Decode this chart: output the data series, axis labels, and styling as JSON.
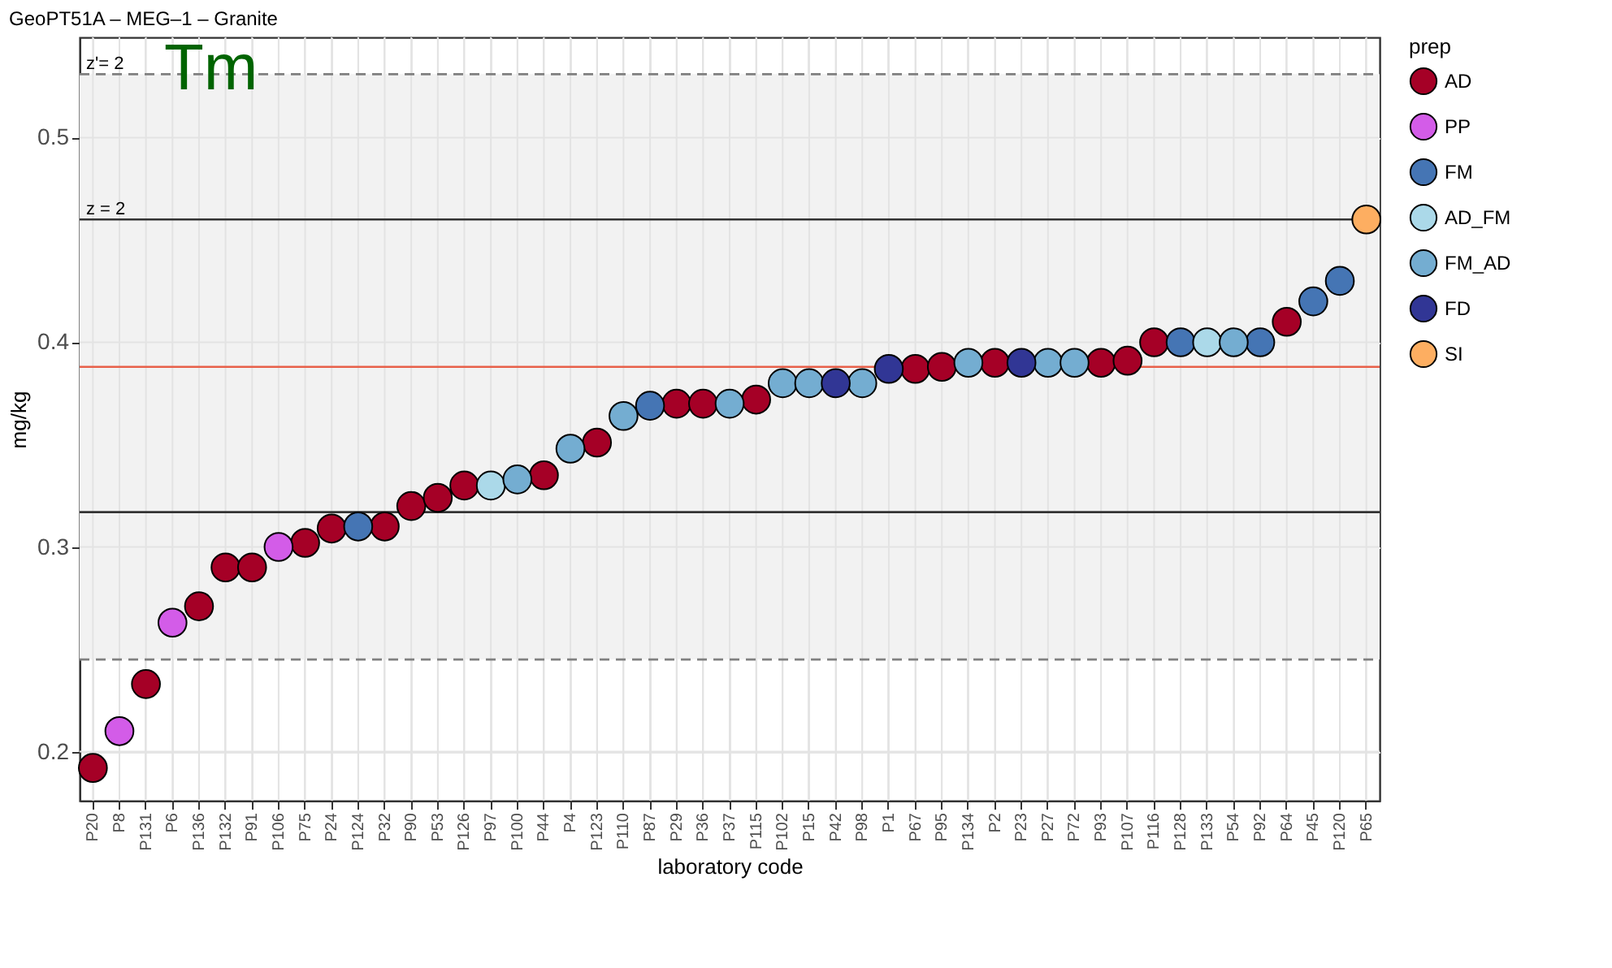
{
  "chart_data": {
    "type": "scatter",
    "title": "GeoPT51A – MEG–1 – Granite",
    "xlabel": "laboratory code",
    "ylabel": "mg/kg",
    "legend_title": "prep",
    "annotations": [
      "Tm",
      {
        "text": "z'= 2",
        "y": 0.531
      },
      {
        "text": "z = 2",
        "y": 0.46
      }
    ],
    "categories": [
      "P20",
      "P8",
      "P131",
      "P6",
      "P136",
      "P132",
      "P91",
      "P106",
      "P75",
      "P24",
      "P124",
      "P32",
      "P90",
      "P53",
      "P126",
      "P97",
      "P100",
      "P44",
      "P4",
      "P123",
      "P110",
      "P87",
      "P29",
      "P36",
      "P37",
      "P115",
      "P102",
      "P15",
      "P42",
      "P98",
      "P1",
      "P67",
      "P95",
      "P134",
      "P2",
      "P23",
      "P27",
      "P72",
      "P93",
      "P107",
      "P116",
      "P128",
      "P133",
      "P54",
      "P92",
      "P64",
      "P45",
      "P120",
      "P65"
    ],
    "series": [
      {
        "name": "AD",
        "color": "#a50026",
        "values": [
          0.192,
          null,
          0.233,
          null,
          0.271,
          0.29,
          0.29,
          null,
          0.302,
          0.309,
          null,
          0.31,
          0.32,
          0.324,
          0.33,
          null,
          null,
          0.335,
          null,
          0.351,
          null,
          null,
          0.37,
          0.37,
          null,
          0.372,
          null,
          null,
          null,
          null,
          null,
          0.387,
          0.388,
          null,
          0.39,
          null,
          null,
          null,
          0.39,
          0.391,
          0.4,
          null,
          null,
          null,
          null,
          0.41,
          null,
          null,
          null
        ]
      },
      {
        "name": "PP",
        "color": "#d35ce8",
        "values": [
          null,
          0.21,
          null,
          0.263,
          null,
          null,
          null,
          0.3,
          null,
          null,
          null,
          null,
          null,
          null,
          null,
          null,
          null,
          null,
          null,
          null,
          null,
          null,
          null,
          null,
          null,
          null,
          null,
          null,
          null,
          null,
          null,
          null,
          null,
          null,
          null,
          null,
          null,
          null,
          null,
          null,
          null,
          null,
          null,
          null,
          null,
          null,
          null,
          null,
          null
        ]
      },
      {
        "name": "FM",
        "color": "#4575b4",
        "values": [
          null,
          null,
          null,
          null,
          null,
          null,
          null,
          null,
          null,
          null,
          0.31,
          null,
          null,
          null,
          null,
          null,
          null,
          null,
          null,
          null,
          null,
          0.369,
          null,
          null,
          null,
          null,
          null,
          null,
          null,
          null,
          null,
          null,
          null,
          null,
          null,
          null,
          null,
          null,
          null,
          null,
          null,
          0.4,
          null,
          null,
          0.4,
          null,
          0.42,
          0.43,
          null
        ]
      },
      {
        "name": "AD_FM",
        "color": "#abd9e9",
        "values": [
          null,
          null,
          null,
          null,
          null,
          null,
          null,
          null,
          null,
          null,
          null,
          null,
          null,
          null,
          null,
          0.33,
          null,
          null,
          null,
          null,
          null,
          null,
          null,
          null,
          null,
          null,
          null,
          null,
          null,
          null,
          null,
          null,
          null,
          null,
          null,
          null,
          null,
          null,
          null,
          null,
          null,
          null,
          0.4,
          null,
          null,
          null,
          null,
          null,
          null
        ]
      },
      {
        "name": "FM_AD",
        "color": "#74add1",
        "values": [
          null,
          null,
          null,
          null,
          null,
          null,
          null,
          null,
          null,
          null,
          null,
          null,
          null,
          null,
          null,
          null,
          0.333,
          null,
          0.348,
          null,
          0.364,
          null,
          null,
          null,
          0.37,
          null,
          0.38,
          0.38,
          null,
          0.38,
          null,
          null,
          null,
          0.39,
          null,
          null,
          0.39,
          0.39,
          null,
          null,
          null,
          null,
          null,
          0.4,
          null,
          null,
          null,
          null,
          null
        ]
      },
      {
        "name": "FD",
        "color": "#313695",
        "values": [
          null,
          null,
          null,
          null,
          null,
          null,
          null,
          null,
          null,
          null,
          null,
          null,
          null,
          null,
          null,
          null,
          null,
          null,
          null,
          null,
          null,
          null,
          null,
          null,
          null,
          null,
          null,
          null,
          0.38,
          null,
          0.387,
          null,
          null,
          null,
          null,
          0.39,
          null,
          null,
          null,
          null,
          null,
          null,
          null,
          null,
          null,
          null,
          null,
          null,
          null
        ]
      },
      {
        "name": "SI",
        "color": "#fdae61",
        "values": [
          null,
          null,
          null,
          null,
          null,
          null,
          null,
          null,
          null,
          null,
          null,
          null,
          null,
          null,
          null,
          null,
          null,
          null,
          null,
          null,
          null,
          null,
          null,
          null,
          null,
          null,
          null,
          null,
          null,
          null,
          null,
          null,
          null,
          null,
          null,
          null,
          null,
          null,
          null,
          null,
          null,
          null,
          null,
          null,
          null,
          null,
          null,
          null,
          0.46
        ]
      }
    ],
    "ylim": [
      0.176,
      0.549
    ],
    "yticks": [
      0.2,
      0.3,
      0.4,
      0.5
    ],
    "ref_lines": [
      {
        "axis": "y",
        "value": 0.531,
        "color": "#808080",
        "line_style": "dashed"
      },
      {
        "axis": "y",
        "value": 0.46,
        "color": "#333333",
        "line_style": "solid"
      },
      {
        "axis": "y",
        "value": 0.388,
        "color": "#e8604a",
        "line_style": "solid"
      },
      {
        "axis": "y",
        "value": 0.317,
        "color": "#333333",
        "line_style": "solid"
      },
      {
        "axis": "y",
        "value": 0.245,
        "color": "#808080",
        "line_style": "dashed"
      }
    ],
    "bands": [
      {
        "axis": "y",
        "from": 0.245,
        "to": 0.531,
        "color": "#f2f2f2"
      }
    ],
    "grid": true,
    "legend": "right",
    "marker": "circle"
  }
}
